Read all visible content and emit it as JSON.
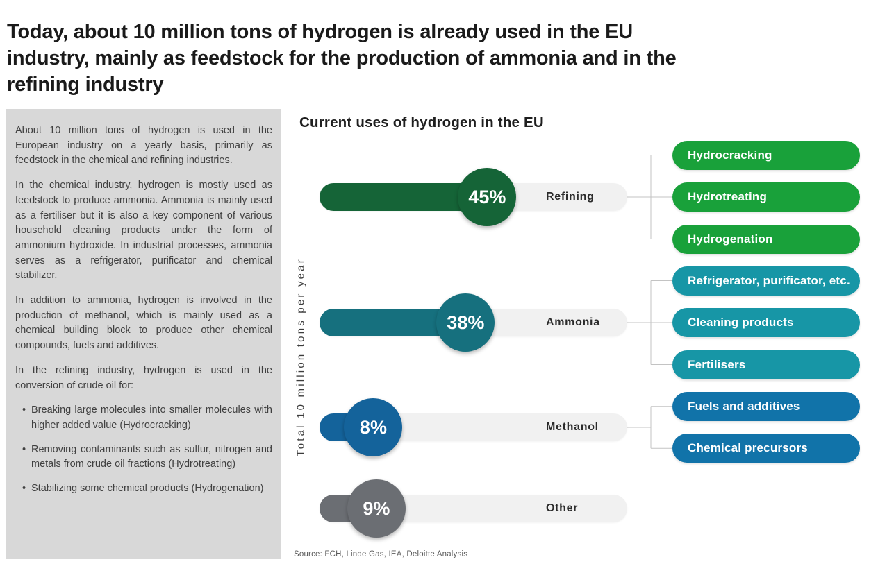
{
  "page_title": "Today, about 10 million tons of hydrogen is already used in the EU industry, mainly as feedstock for the production of ammonia and in the refining industry",
  "page_title_lines": [
    "Today, about 10 million tons of hydrogen is already used in the EU",
    "industry, mainly as feedstock for the production of ammonia and in the",
    "refining industry"
  ],
  "sidebar": {
    "paragraphs": [
      "About 10 million tons of hydrogen is used in the European industry on a yearly basis, primarily as feedstock in the chemical and refining industries.",
      "In the chemical industry, hydrogen is mostly used as feedstock to produce ammonia. Ammonia is mainly used as a fertiliser but it is also a key component of various household cleaning products under the form of ammonium hydroxide. In industrial processes, ammonia serves as a refrigerator, purificator and chemical stabilizer.",
      "In addition to ammonia, hydrogen is involved in the production of methanol, which is mainly used as a chemical building block to produce other chemical compounds, fuels and additives.",
      "In the refining industry, hydrogen is used in the conversion of crude oil for:"
    ],
    "bullets": [
      "Breaking large molecules into smaller molecules with higher added value (Hydrocracking)",
      "Removing contaminants such as sulfur, nitrogen and metals from crude oil fractions (Hydrotreating)",
      "Stabilizing some chemical products (Hydrogenation)"
    ]
  },
  "chart_data": {
    "type": "bar",
    "orientation": "horizontal",
    "title": "Current uses of hydrogen in the EU",
    "ylabel": "Total 10 million tons per year",
    "xlabel": "",
    "categories": [
      "Refining",
      "Ammonia",
      "Methanol",
      "Other"
    ],
    "values": [
      45,
      38,
      8,
      9
    ],
    "value_labels": [
      "45%",
      "38%",
      "8%",
      "9%"
    ],
    "unit": "%",
    "xlim": [
      0,
      100
    ],
    "grid": false,
    "legend": "none",
    "sub_uses": [
      [
        "Hydrocracking",
        "Hydrotreating",
        "Hydrogenation"
      ],
      [
        "Refrigerator, purificator, etc.",
        "Cleaning products",
        "Fertilisers"
      ],
      [
        "Fuels and additives",
        "Chemical precursors"
      ],
      []
    ],
    "source": "Source: FCH, Linde Gas, IEA, Deloitte Analysis"
  },
  "colors": {
    "bar": [
      "#156437",
      "#16707e",
      "#14639b",
      "#6b6e73"
    ],
    "boxes": [
      "#19a13a",
      "#1796a6",
      "#1173a9",
      null
    ],
    "track": "#f1f1f1",
    "connector": "#c3c3c3",
    "panel_bg": "#d8d8d8",
    "circle_text": "#ffffff"
  }
}
